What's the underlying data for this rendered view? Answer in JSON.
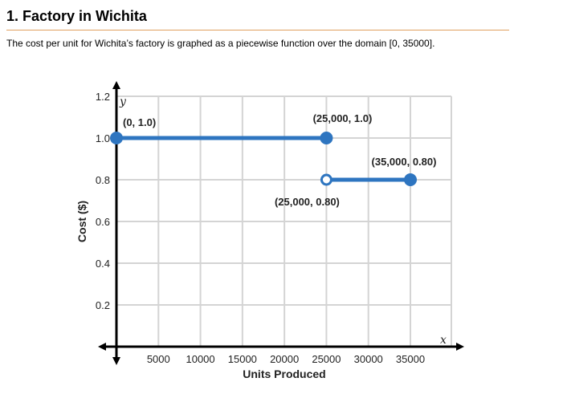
{
  "problem": {
    "title": "1. Factory in Wichita",
    "description": "The cost per unit for Wichita’s factory is graphed as a piecewise function over the domain [0, 35000]."
  },
  "chart_data": {
    "type": "line",
    "xlabel": "Units Produced",
    "ylabel": "Cost ($)",
    "x_var": "x",
    "y_var": "y",
    "xlim": [
      0,
      35000
    ],
    "ylim": [
      0,
      1.2
    ],
    "x_ticks": [
      5000,
      10000,
      15000,
      20000,
      25000,
      30000,
      35000
    ],
    "y_ticks": [
      0.2,
      0.4,
      0.6,
      0.8,
      1.0,
      1.2
    ],
    "y_tick_labels": [
      "0.2",
      "0.4",
      "0.6",
      "0.8",
      "1.0",
      "1.2"
    ],
    "grid": true,
    "line_color": "#2e75c0",
    "series": [
      {
        "points": [
          {
            "x": 0,
            "y": 1.0,
            "label": "(0, 1.0)",
            "marker": "closed"
          },
          {
            "x": 25000,
            "y": 1.0,
            "label": "(25,000, 1.0)",
            "marker": "closed"
          }
        ]
      },
      {
        "points": [
          {
            "x": 25000,
            "y": 0.8,
            "label": "(25,000, 0.80)",
            "marker": "open"
          },
          {
            "x": 35000,
            "y": 0.8,
            "label": "(35,000, 0.80)",
            "marker": "closed"
          }
        ]
      }
    ]
  }
}
